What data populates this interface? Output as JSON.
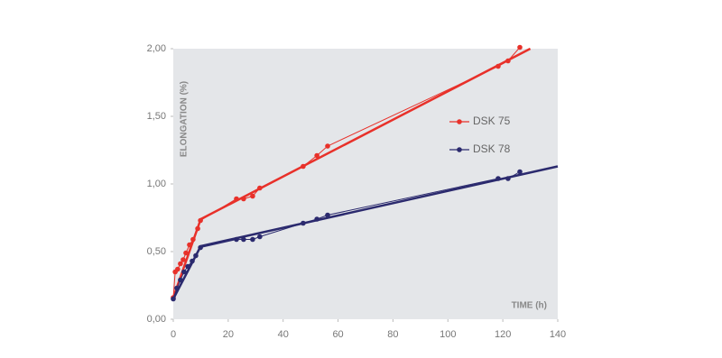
{
  "chart_data": {
    "type": "line",
    "x_label": "TIME (h)",
    "y_label": "ELONGATION (%)",
    "xlim": [
      0,
      140
    ],
    "xticks": [
      0,
      20,
      40,
      60,
      80,
      100,
      120,
      140
    ],
    "ylim": [
      0,
      2
    ],
    "yticks": [
      {
        "value": 0,
        "label": "0,00"
      },
      {
        "value": 0.5,
        "label": "0,50"
      },
      {
        "value": 1,
        "label": "1,00"
      },
      {
        "value": 1.5,
        "label": "1,50"
      },
      {
        "value": 2,
        "label": "2,00"
      }
    ],
    "legend": "upper-right",
    "series": [
      {
        "name": "DSK 75",
        "color": "#e8312a",
        "x": [
          0,
          0.7,
          1.6,
          2.6,
          3.6,
          4.6,
          5.9,
          7.2,
          8.9,
          9.9,
          23,
          25.6,
          28.9,
          31.5,
          47.3,
          52.3,
          56.2,
          118.3,
          121.9,
          126.2
        ],
        "values": [
          0.16,
          0.35,
          0.37,
          0.41,
          0.44,
          0.49,
          0.55,
          0.59,
          0.67,
          0.73,
          0.89,
          0.89,
          0.91,
          0.97,
          1.13,
          1.21,
          1.28,
          1.87,
          1.91,
          2.01
        ],
        "fit": {
          "x": [
            0,
            10,
            130
          ],
          "values": [
            0.16,
            0.74,
            2.0
          ]
        }
      },
      {
        "name": "DSK 78",
        "color": "#2b2a6e",
        "x": [
          0,
          1.3,
          2.6,
          3.9,
          5.3,
          6.9,
          8.2,
          9.9,
          23,
          25.6,
          28.9,
          31.5,
          47.3,
          52.3,
          56.2,
          118.3,
          121.9,
          126.2
        ],
        "values": [
          0.15,
          0.23,
          0.29,
          0.35,
          0.39,
          0.43,
          0.47,
          0.53,
          0.59,
          0.59,
          0.59,
          0.61,
          0.71,
          0.74,
          0.77,
          1.04,
          1.04,
          1.09
        ],
        "fit": {
          "x": [
            0,
            10,
            140
          ],
          "values": [
            0.15,
            0.54,
            1.13
          ]
        }
      }
    ]
  }
}
